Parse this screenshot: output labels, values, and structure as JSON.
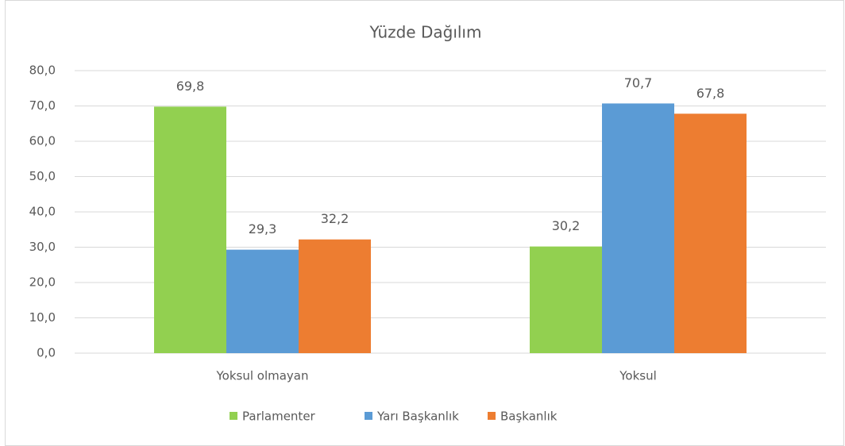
{
  "chart_data": {
    "type": "bar",
    "title": "Yüzde Dağılım",
    "categories": [
      "Yoksul olmayan",
      "Yoksul"
    ],
    "series": [
      {
        "name": "Parlamenter",
        "color": "#92d050",
        "values": [
          69.8,
          30.2
        ],
        "value_labels": [
          "69,8",
          "30,2"
        ]
      },
      {
        "name": "Yarı Başkanlık",
        "color": "#5b9bd5",
        "values": [
          29.3,
          70.7
        ],
        "value_labels": [
          "29,3",
          "70,7"
        ]
      },
      {
        "name": "Başkanlık",
        "color": "#ed7d31",
        "values": [
          32.2,
          67.8
        ],
        "value_labels": [
          "32,2",
          "67,8"
        ]
      }
    ],
    "ylim": [
      0,
      80
    ],
    "yticks": [
      {
        "value": 0,
        "label": "0,0"
      },
      {
        "value": 10,
        "label": "10,0"
      },
      {
        "value": 20,
        "label": "20,0"
      },
      {
        "value": 30,
        "label": "30,0"
      },
      {
        "value": 40,
        "label": "40,0"
      },
      {
        "value": 50,
        "label": "50,0"
      },
      {
        "value": 60,
        "label": "60,0"
      },
      {
        "value": 70,
        "label": "70,0"
      },
      {
        "value": 80,
        "label": "80,0"
      }
    ],
    "grid": true,
    "legend": "bottom"
  }
}
